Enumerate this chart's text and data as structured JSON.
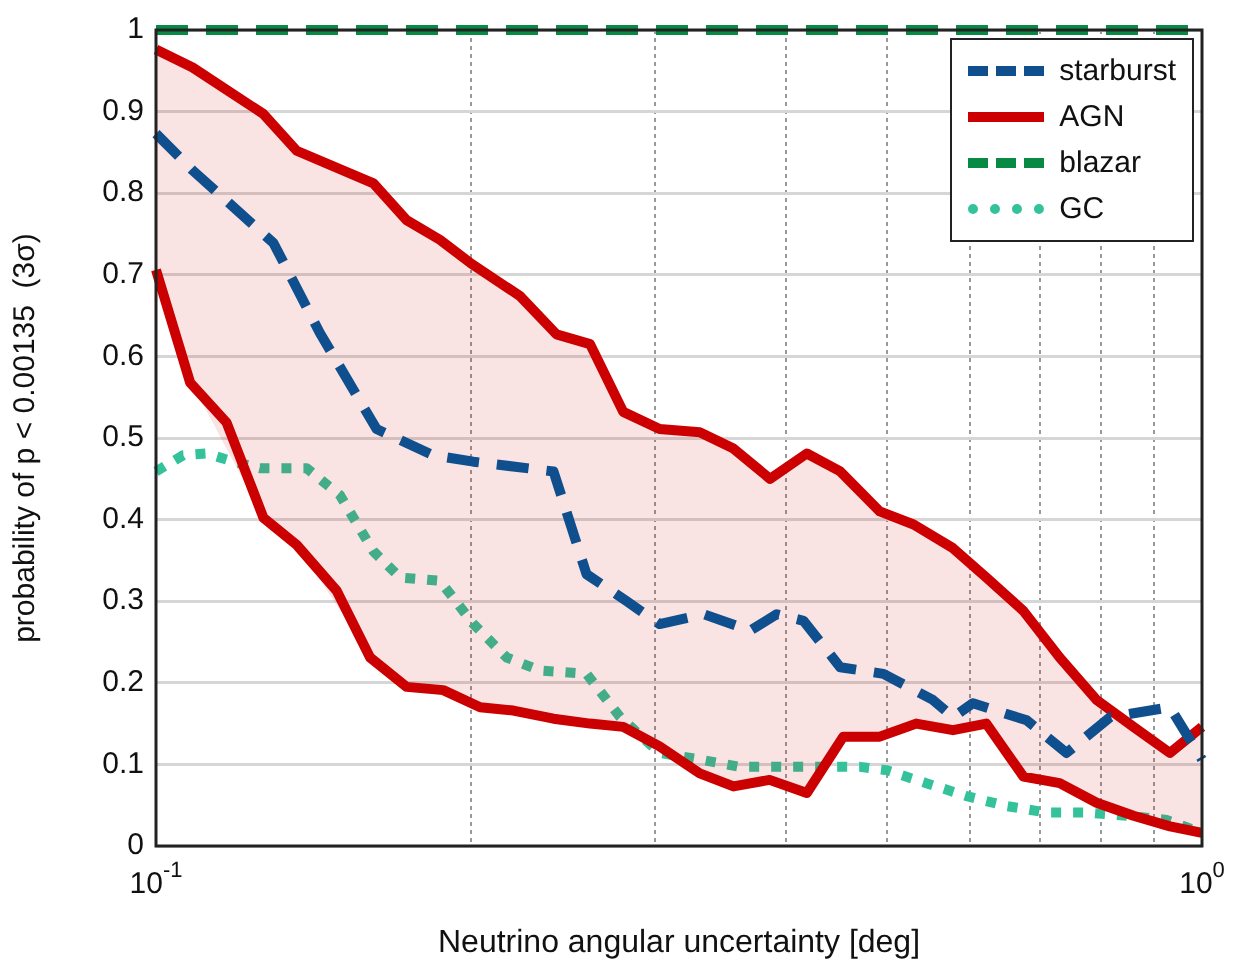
{
  "chart_data": {
    "type": "line",
    "xlabel": "Neutrino angular uncertainty [deg]",
    "ylabel": "probability of p < 0.00135  (3σ)",
    "log": "x",
    "xlim": [
      0.1,
      1
    ],
    "ylim": [
      0,
      1
    ],
    "xticks": [
      {
        "value": 0.1,
        "label": "10$^{-1}$"
      },
      {
        "value": 0.2,
        "label": null
      },
      {
        "value": 0.3,
        "label": null
      },
      {
        "value": 0.4,
        "label": null
      },
      {
        "value": 0.5,
        "label": null
      },
      {
        "value": 0.6,
        "label": null
      },
      {
        "value": 0.7,
        "label": null
      },
      {
        "value": 0.8,
        "label": null
      },
      {
        "value": 0.9,
        "label": null
      },
      {
        "value": 1,
        "label": "10$^{0}$"
      }
    ],
    "yticks": [
      0,
      0.1,
      0.2,
      0.3,
      0.4,
      0.5,
      0.6,
      0.7,
      0.8,
      0.9,
      1
    ],
    "grid": true,
    "legend": "top right",
    "marker": "none",
    "series": [
      {
        "name": "starburst",
        "color": "#0f4f8e",
        "line_style": "dashed",
        "x": [
          0.1,
          0.1084,
          0.1295,
          0.1434,
          0.1625,
          0.184,
          0.2011,
          0.2399,
          0.258,
          0.2818,
          0.303,
          0.334,
          0.37,
          0.392,
          0.416,
          0.451,
          0.496,
          0.553,
          0.578,
          0.604,
          0.68,
          0.742,
          0.817,
          0.932,
          1
        ],
        "values": [
          0.873,
          0.828,
          0.739,
          0.629,
          0.511,
          0.479,
          0.471,
          0.459,
          0.333,
          0.3,
          0.272,
          0.284,
          0.264,
          0.284,
          0.276,
          0.219,
          0.211,
          0.179,
          0.158,
          0.175,
          0.154,
          0.114,
          0.158,
          0.17,
          0.106
        ]
      },
      {
        "name": "AGN",
        "color": "#cc0000",
        "line_style": "solid",
        "x": [
          0.1,
          0.1084,
          0.1267,
          0.1363,
          0.1614,
          0.1736,
          0.1868,
          0.2,
          0.2228,
          0.2415,
          0.26,
          0.2797,
          0.303,
          0.331,
          0.3565,
          0.3864,
          0.419,
          0.451,
          0.492,
          0.53,
          0.578,
          0.622,
          0.675,
          0.731,
          0.793,
          0.86,
          0.932,
          1
        ],
        "values": [
          0.976,
          0.954,
          0.897,
          0.852,
          0.812,
          0.767,
          0.743,
          0.714,
          0.674,
          0.627,
          0.615,
          0.532,
          0.511,
          0.507,
          0.487,
          0.45,
          0.481,
          0.459,
          0.41,
          0.394,
          0.365,
          0.329,
          0.288,
          0.231,
          0.179,
          0.146,
          0.114,
          0.146
        ],
        "upper": [
          0.976,
          0.954,
          0.897,
          0.852,
          0.812,
          0.767,
          0.743,
          0.714,
          0.674,
          0.627,
          0.615,
          0.532,
          0.511,
          0.507,
          0.487,
          0.45,
          0.481,
          0.459,
          0.41,
          0.394,
          0.365,
          0.329,
          0.288,
          0.231,
          0.179,
          0.146,
          0.114,
          0.146
        ],
        "lower": [
          0.706,
          0.565,
          0.402,
          0.369,
          0.228,
          0.195,
          0.191,
          0.176,
          0.164,
          0.156,
          0.15,
          0.146,
          0.122,
          0.089,
          0.073,
          0.081,
          0.065,
          0.13,
          0.134,
          0.149,
          0.142,
          0.15,
          0.085,
          0.077,
          0.053,
          0.037,
          0.024,
          0.016
        ]
      },
      {
        "color": "#cc0000",
        "line_style": "solid",
        "x": [
          0.1,
          0.1078,
          0.1168,
          0.1267,
          0.1363,
          0.1488,
          0.1602,
          0.1736,
          0.1882,
          0.2041,
          0.2196,
          0.2399,
          0.26,
          0.2797,
          0.303,
          0.331,
          0.3565,
          0.386,
          0.419,
          0.454,
          0.492,
          0.533,
          0.578,
          0.622,
          0.675,
          0.731,
          0.793,
          0.86,
          0.932,
          1
        ],
        "values": [
          0.706,
          0.568,
          0.519,
          0.402,
          0.369,
          0.313,
          0.231,
          0.195,
          0.191,
          0.17,
          0.166,
          0.156,
          0.15,
          0.146,
          0.122,
          0.089,
          0.073,
          0.081,
          0.065,
          0.134,
          0.134,
          0.15,
          0.142,
          0.15,
          0.085,
          0.077,
          0.053,
          0.037,
          0.024,
          0.016
        ]
      },
      {
        "name": "blazar",
        "color": "#088a45",
        "line_style": "dashed",
        "x": [
          0.1,
          1
        ],
        "values": [
          1,
          1
        ]
      },
      {
        "name": "GC",
        "color": "#33c29a",
        "line_style": "dotted",
        "x": [
          0.1,
          0.1062,
          0.1118,
          0.1186,
          0.1257,
          0.1393,
          0.1499,
          0.1614,
          0.1711,
          0.1868,
          0.1924,
          0.2011,
          0.2164,
          0.2329,
          0.258,
          0.2778,
          0.303,
          0.331,
          0.3616,
          0.395,
          0.431,
          0.471,
          0.499,
          0.545,
          0.596,
          0.65,
          0.71,
          0.776,
          0.847,
          0.925,
          1
        ],
        "values": [
          0.459,
          0.479,
          0.481,
          0.471,
          0.463,
          0.463,
          0.43,
          0.361,
          0.329,
          0.325,
          0.304,
          0.272,
          0.231,
          0.215,
          0.211,
          0.158,
          0.114,
          0.106,
          0.097,
          0.097,
          0.097,
          0.097,
          0.093,
          0.077,
          0.061,
          0.049,
          0.041,
          0.041,
          0.037,
          0.032,
          0.016
        ]
      }
    ]
  }
}
